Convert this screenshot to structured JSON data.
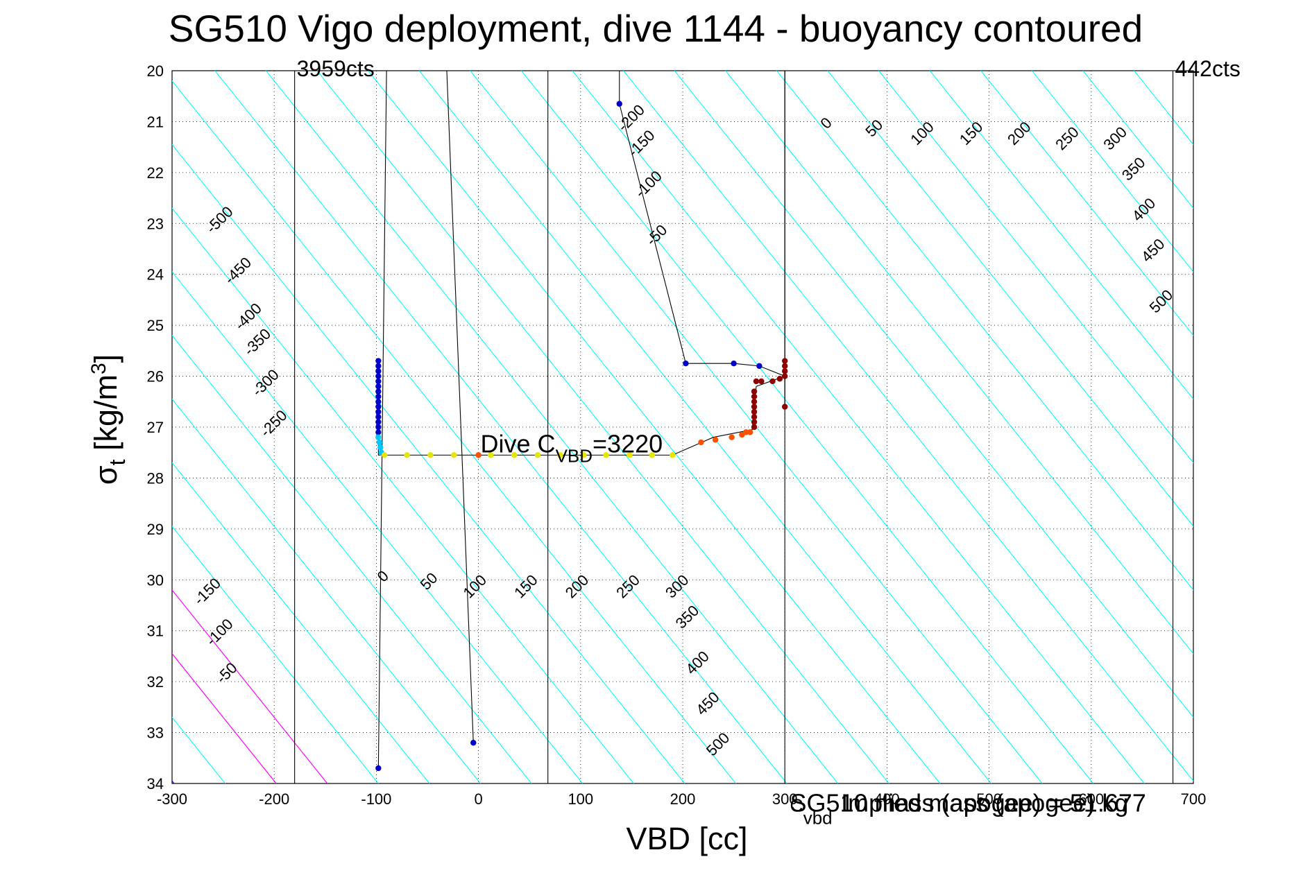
{
  "chart_data": {
    "type": "scatter",
    "title": "SG510 Vigo deployment, dive 1144 - buoyancy contoured",
    "xlabel": "VBD [cc]",
    "ylabel_main": "σ",
    "ylabel_sub": "t",
    "ylabel_unit_pre": " [kg/m",
    "ylabel_unit_sup": "3",
    "ylabel_unit_post": "]",
    "xlim": [
      -300,
      700
    ],
    "ylim": [
      20,
      34
    ],
    "y_reversed": true,
    "grid": true,
    "x_ticks": [
      -300,
      -200,
      -100,
      0,
      100,
      200,
      300,
      400,
      500,
      600,
      700
    ],
    "y_ticks": [
      20,
      21,
      22,
      23,
      24,
      25,
      26,
      27,
      28,
      29,
      30,
      31,
      32,
      33,
      34
    ],
    "top_annotations": [
      {
        "text": "3959cts",
        "x": -180
      },
      {
        "text": "442cts",
        "x": 680
      }
    ],
    "vertical_lines": [
      -180,
      68,
      300,
      680
    ],
    "dive_c_vbd": {
      "prefix": "Dive C",
      "sub": "VBD",
      "suffix": "=3220",
      "x": 2,
      "y": 27.5
    },
    "overlapping_text": [
      {
        "text": "SG510 mass (apogee) = 51.677",
        "x": 305,
        "y": 34.55
      },
      {
        "text": "Implied mass (apogee) kg",
        "x": 355,
        "y": 34.55
      },
      {
        "text": "C",
        "x": 305,
        "y": 34.55
      },
      {
        "text": "vbd",
        "x": 318,
        "y": 34.8
      }
    ],
    "contour_colors": {
      "cyan": "#00ffff",
      "zero": "#0000ff",
      "magenta": "#ff00ff"
    },
    "contours": [
      {
        "label": "-500",
        "x": -250,
        "y": 23.0
      },
      {
        "label": "-450",
        "x": -232,
        "y": 24.0
      },
      {
        "label": "-400",
        "x": -222,
        "y": 24.9
      },
      {
        "label": "-350",
        "x": -213,
        "y": 25.4
      },
      {
        "label": "-300",
        "x": -205,
        "y": 26.2
      },
      {
        "label": "-250",
        "x": -197,
        "y": 27.0
      },
      {
        "label": "-200",
        "x": 153,
        "y": 21.0
      },
      {
        "label": "-150",
        "x": 163,
        "y": 21.5
      },
      {
        "label": "-100",
        "x": 170,
        "y": 22.3
      },
      {
        "label": "-50",
        "x": 178,
        "y": 23.3
      },
      {
        "label": "0",
        "x": 344,
        "y": 21.1
      },
      {
        "label": "50",
        "x": 391,
        "y": 21.2
      },
      {
        "label": "100",
        "x": 438,
        "y": 21.3
      },
      {
        "label": "150",
        "x": 486,
        "y": 21.3
      },
      {
        "label": "200",
        "x": 533,
        "y": 21.3
      },
      {
        "label": "250",
        "x": 580,
        "y": 21.4
      },
      {
        "label": "300",
        "x": 627,
        "y": 21.4
      },
      {
        "label": "350",
        "x": 645,
        "y": 22.0
      },
      {
        "label": "400",
        "x": 655,
        "y": 22.8
      },
      {
        "label": "450",
        "x": 664,
        "y": 23.6
      },
      {
        "label": "500",
        "x": 672,
        "y": 24.6
      },
      {
        "label": "-150",
        "x": -262,
        "y": 30.3
      },
      {
        "label": "-100",
        "x": -250,
        "y": 31.1
      },
      {
        "label": "-50",
        "x": -243,
        "y": 31.9
      },
      {
        "label": "0",
        "x": -90,
        "y": 30.0
      },
      {
        "label": "50",
        "x": -45,
        "y": 30.1
      },
      {
        "label": "100",
        "x": 0,
        "y": 30.2
      },
      {
        "label": "150",
        "x": 50,
        "y": 30.2
      },
      {
        "label": "200",
        "x": 100,
        "y": 30.2
      },
      {
        "label": "250",
        "x": 150,
        "y": 30.2
      },
      {
        "label": "300",
        "x": 198,
        "y": 30.2
      },
      {
        "label": "350",
        "x": 208,
        "y": 30.8
      },
      {
        "label": "400",
        "x": 218,
        "y": 31.7
      },
      {
        "label": "450",
        "x": 228,
        "y": 32.5
      },
      {
        "label": "500",
        "x": 238,
        "y": 33.3
      }
    ],
    "path_lines": [
      {
        "points": [
          [
            -98,
            33.7
          ],
          [
            -90,
            20
          ]
        ]
      },
      {
        "points": [
          [
            -31,
            20
          ],
          [
            -5,
            33.2
          ]
        ]
      },
      {
        "points": [
          [
            138,
            20
          ],
          [
            138,
            20.65
          ],
          [
            203,
            25.75
          ],
          [
            250,
            25.75
          ],
          [
            275,
            25.8
          ],
          [
            300,
            26.0
          ],
          [
            300,
            25.7
          ]
        ]
      },
      {
        "points": [
          [
            300,
            20
          ],
          [
            300,
            26.6
          ]
        ]
      },
      {
        "points": [
          [
            -98,
            25.7
          ],
          [
            -98,
            27.55
          ],
          [
            190,
            27.55
          ],
          [
            230,
            27.2
          ],
          [
            268,
            27.05
          ],
          [
            272,
            26.2
          ],
          [
            300,
            26.0
          ]
        ]
      }
    ],
    "series": [
      {
        "values": [
          [
            138,
            20.65
          ],
          [
            203,
            25.75
          ],
          [
            250,
            25.75
          ],
          [
            275,
            25.8
          ],
          [
            -98,
            33.7
          ],
          [
            -5,
            33.2
          ],
          [
            -98,
            25.7
          ],
          [
            -98,
            25.8
          ],
          [
            -98,
            25.9
          ],
          [
            -98,
            26.0
          ],
          [
            -98,
            26.1
          ],
          [
            -98,
            26.2
          ],
          [
            -98,
            26.3
          ],
          [
            -98,
            26.4
          ],
          [
            -98,
            26.5
          ],
          [
            -98,
            26.6
          ],
          [
            -98,
            26.7
          ],
          [
            -98,
            26.8
          ],
          [
            -98,
            26.9
          ],
          [
            -98,
            27.0
          ],
          [
            -98,
            27.1
          ]
        ],
        "color": "#0000c8"
      },
      {
        "values": [
          [
            -98,
            27.2
          ],
          [
            -97,
            27.3
          ],
          [
            -96,
            27.4
          ],
          [
            -95,
            27.5
          ]
        ],
        "color": "#00c8ff"
      },
      {
        "values": [
          [
            -92,
            27.55
          ],
          [
            -70,
            27.55
          ],
          [
            -47,
            27.55
          ],
          [
            -24,
            27.55
          ],
          [
            12,
            27.55
          ],
          [
            35,
            27.55
          ],
          [
            58,
            27.55
          ],
          [
            80,
            27.55
          ],
          [
            103,
            27.55
          ],
          [
            125,
            27.55
          ],
          [
            148,
            27.55
          ],
          [
            170,
            27.55
          ],
          [
            190,
            27.55
          ]
        ],
        "color": "#e6e600"
      },
      {
        "values": [
          [
            0,
            27.55
          ],
          [
            218,
            27.3
          ],
          [
            232,
            27.25
          ],
          [
            248,
            27.2
          ],
          [
            258,
            27.15
          ],
          [
            262,
            27.1
          ],
          [
            266,
            27.1
          ]
        ],
        "color": "#ff5000"
      },
      {
        "values": [
          [
            270,
            27.0
          ],
          [
            270,
            26.9
          ],
          [
            270,
            26.8
          ],
          [
            270,
            26.7
          ],
          [
            270,
            26.6
          ],
          [
            270,
            26.5
          ],
          [
            270,
            26.4
          ],
          [
            270,
            26.3
          ],
          [
            272,
            26.1
          ],
          [
            277,
            26.1
          ],
          [
            288,
            26.1
          ],
          [
            300,
            26.0
          ],
          [
            300,
            25.7
          ],
          [
            300,
            25.8
          ],
          [
            300,
            25.9
          ],
          [
            300,
            26.6
          ],
          [
            295,
            26.05
          ]
        ],
        "color": "#8c0000"
      }
    ]
  }
}
